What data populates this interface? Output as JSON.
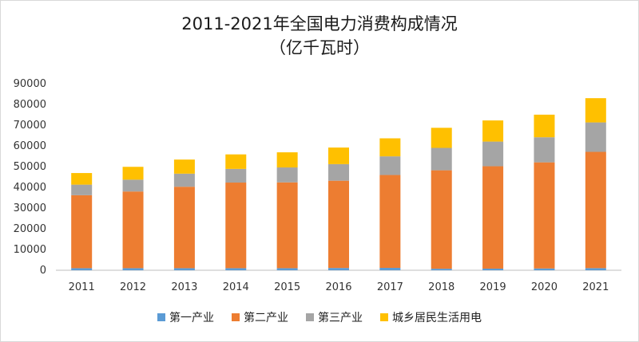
{
  "chart_data": {
    "type": "bar",
    "stacked": true,
    "title": "2011-2021年全国电力消费构成情况",
    "subtitle": "（亿千瓦时）",
    "categories": [
      "2011",
      "2012",
      "2013",
      "2014",
      "2015",
      "2016",
      "2017",
      "2018",
      "2019",
      "2020",
      "2021"
    ],
    "series": [
      {
        "name": "第一产业",
        "color": "#5b9bd5",
        "values": [
          1000,
          1000,
          1000,
          1000,
          1000,
          1100,
          1150,
          730,
          780,
          860,
          1020
        ]
      },
      {
        "name": "第二产业",
        "color": "#ed7d31",
        "values": [
          35200,
          37000,
          39300,
          41300,
          41400,
          42100,
          44800,
          47500,
          49400,
          51200,
          56100
        ]
      },
      {
        "name": "第三产业",
        "color": "#a5a5a5",
        "values": [
          5100,
          5700,
          6300,
          6600,
          7200,
          8000,
          9000,
          10800,
          11900,
          12100,
          14200
        ]
      },
      {
        "name": "城乡居民生活用电",
        "color": "#ffc000",
        "values": [
          5600,
          6200,
          6800,
          7000,
          7300,
          8000,
          8700,
          9700,
          10200,
          10900,
          11700
        ]
      }
    ],
    "yticks": [
      "0",
      "10000",
      "20000",
      "30000",
      "40000",
      "50000",
      "60000",
      "70000",
      "80000",
      "90000"
    ],
    "ylim": [
      0,
      90000
    ],
    "grid": false,
    "legend_position": "bottom"
  }
}
